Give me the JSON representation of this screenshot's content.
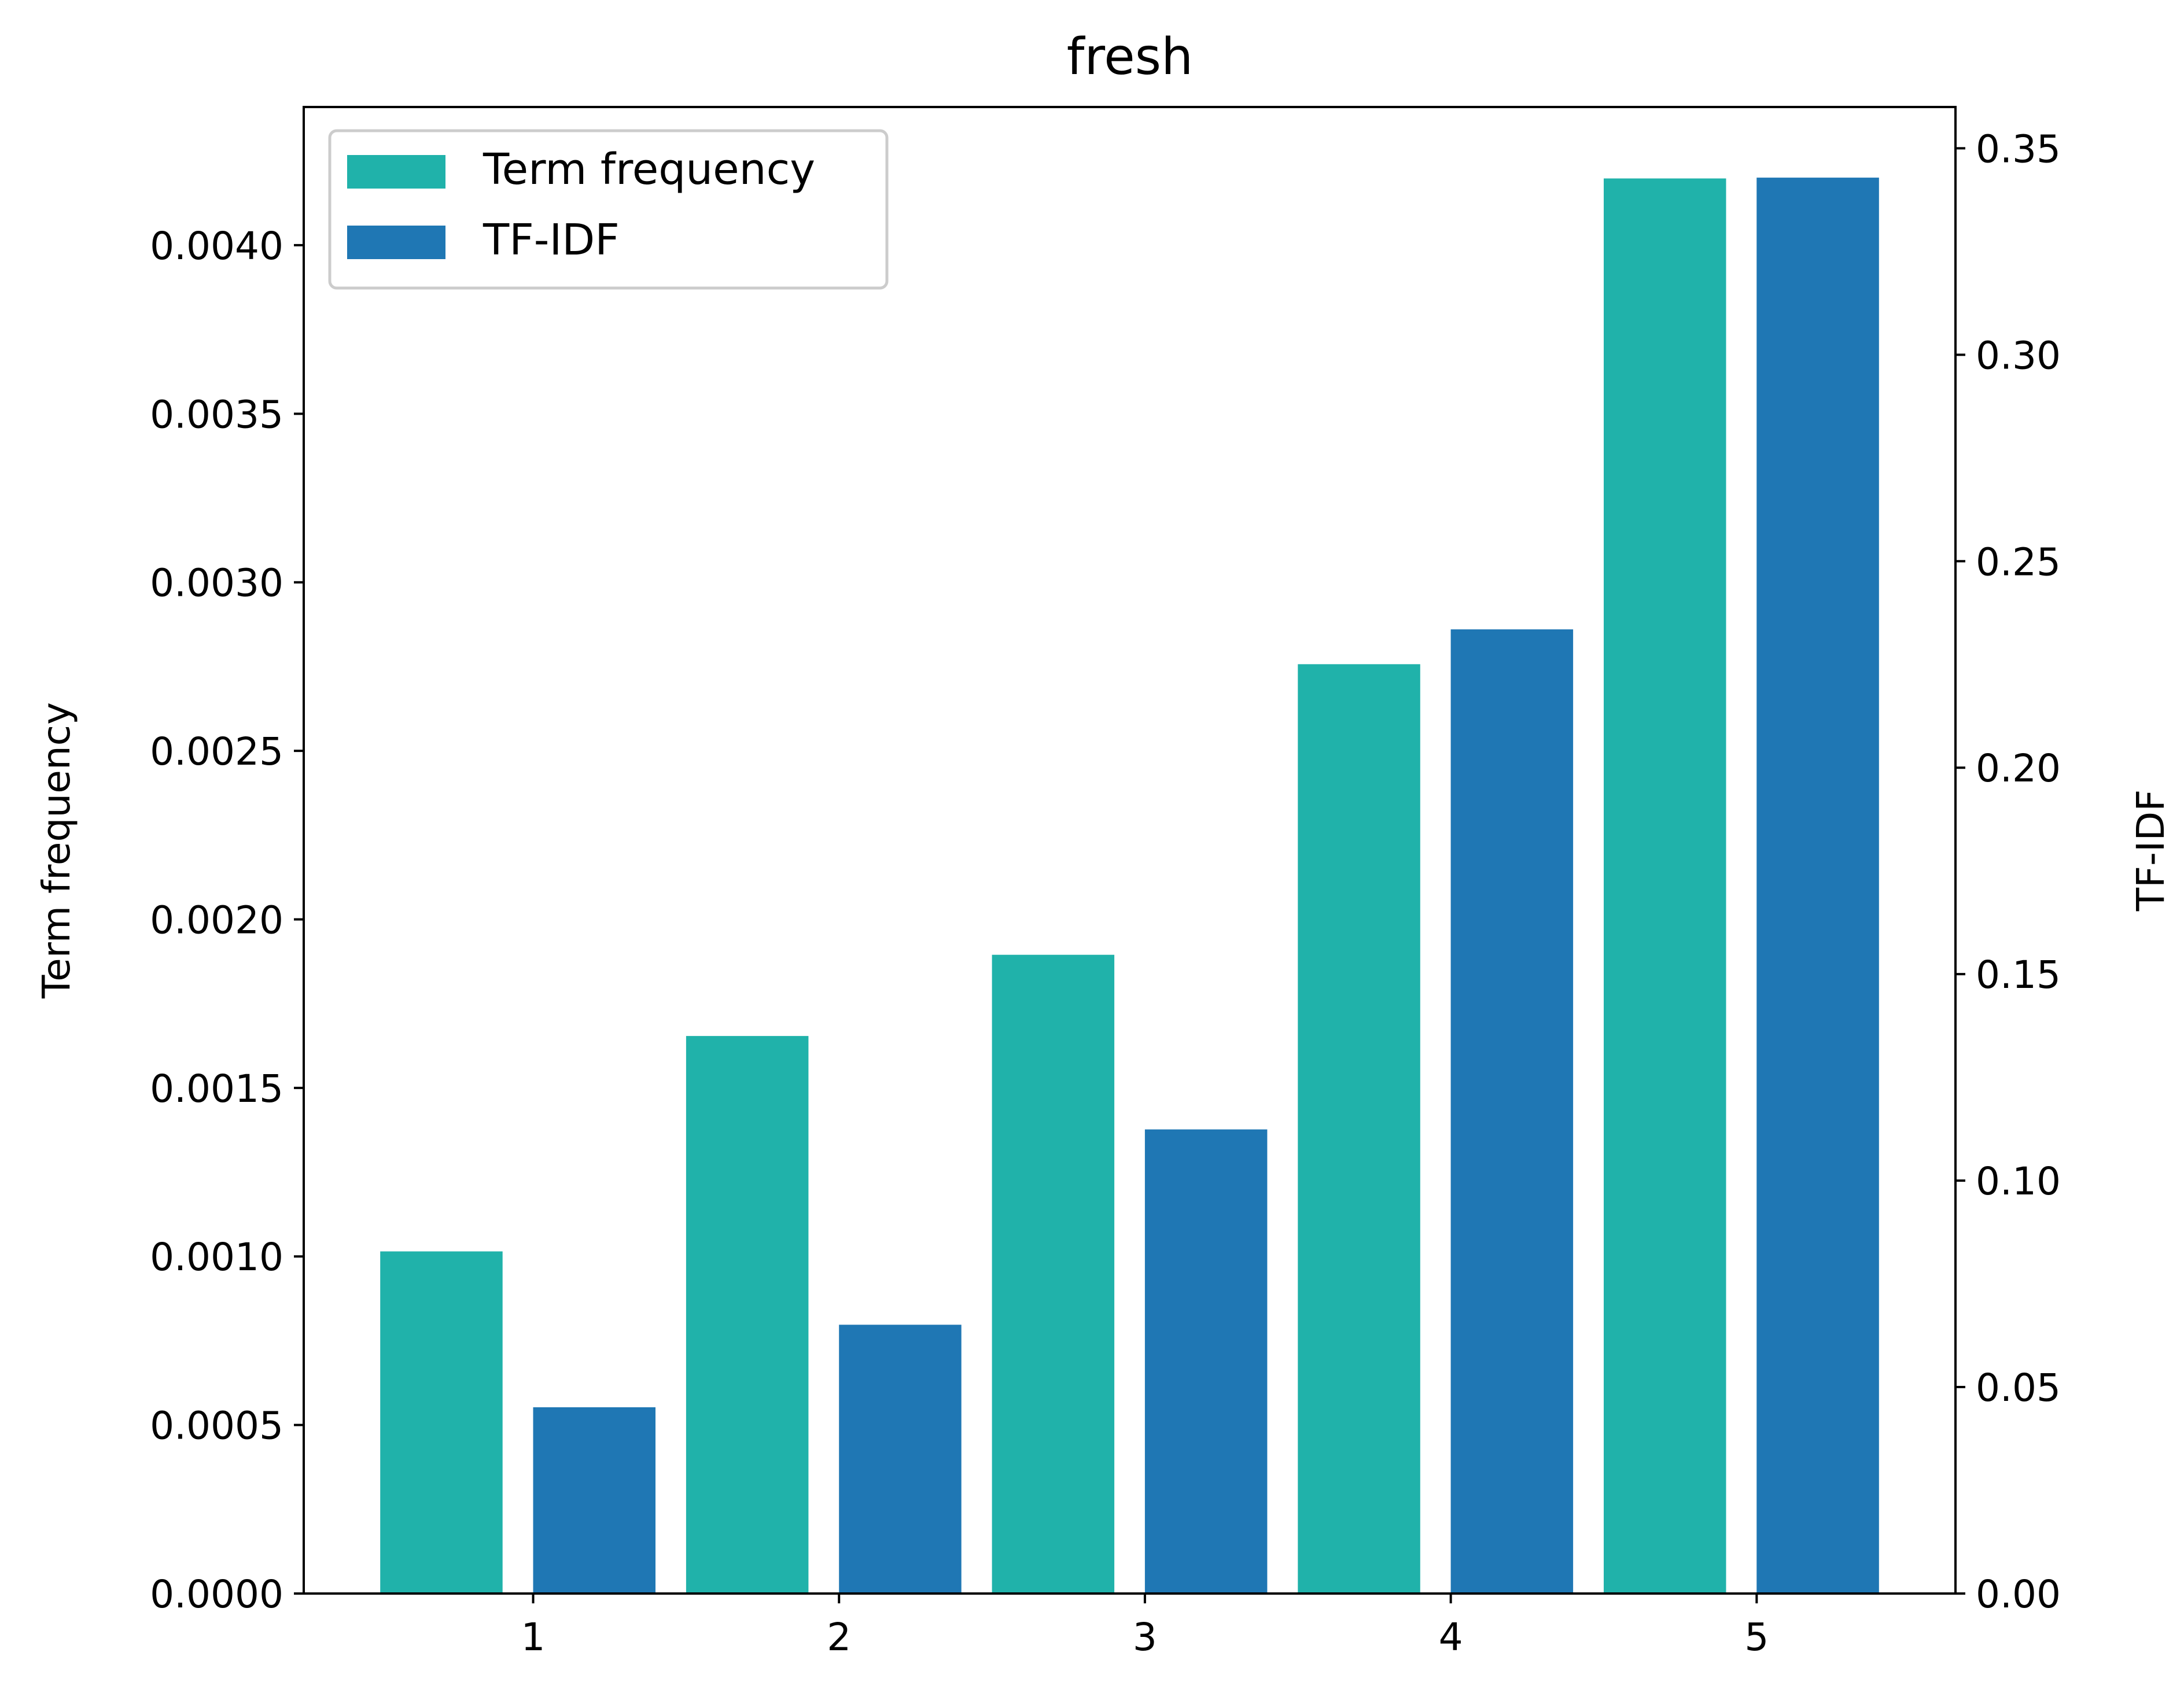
{
  "chart_data": {
    "type": "bar",
    "title": "fresh",
    "categories": [
      "1",
      "2",
      "3",
      "4",
      "5"
    ],
    "x": [
      1,
      2,
      3,
      4,
      5
    ],
    "xlim": [
      0.25,
      5.65
    ],
    "series": [
      {
        "name": "Term frequency",
        "axis": "left",
        "color": "#20b2aa",
        "offset": -0.3,
        "width": 0.4,
        "values": [
          0.001015,
          0.001654,
          0.001895,
          0.002757,
          0.004198
        ]
      },
      {
        "name": "TF-IDF",
        "axis": "right",
        "color": "#1f77b4",
        "offset": 0.2,
        "width": 0.4,
        "values": [
          0.0451,
          0.0651,
          0.1124,
          0.2335,
          0.3429
        ]
      }
    ],
    "left_axis": {
      "label": "Term frequency",
      "ylim": [
        0,
        0.00441
      ],
      "ticks": [
        "0.0000",
        "0.0005",
        "0.0010",
        "0.0015",
        "0.0020",
        "0.0025",
        "0.0030",
        "0.0035",
        "0.0040"
      ]
    },
    "right_axis": {
      "label": "TF-IDF",
      "ylim": [
        0,
        0.36
      ],
      "ticks": [
        "0.00",
        "0.05",
        "0.10",
        "0.15",
        "0.20",
        "0.25",
        "0.30",
        "0.35"
      ]
    },
    "grid": false,
    "legend": {
      "position": "top-left",
      "entries": [
        "Term frequency",
        "TF-IDF"
      ]
    }
  }
}
